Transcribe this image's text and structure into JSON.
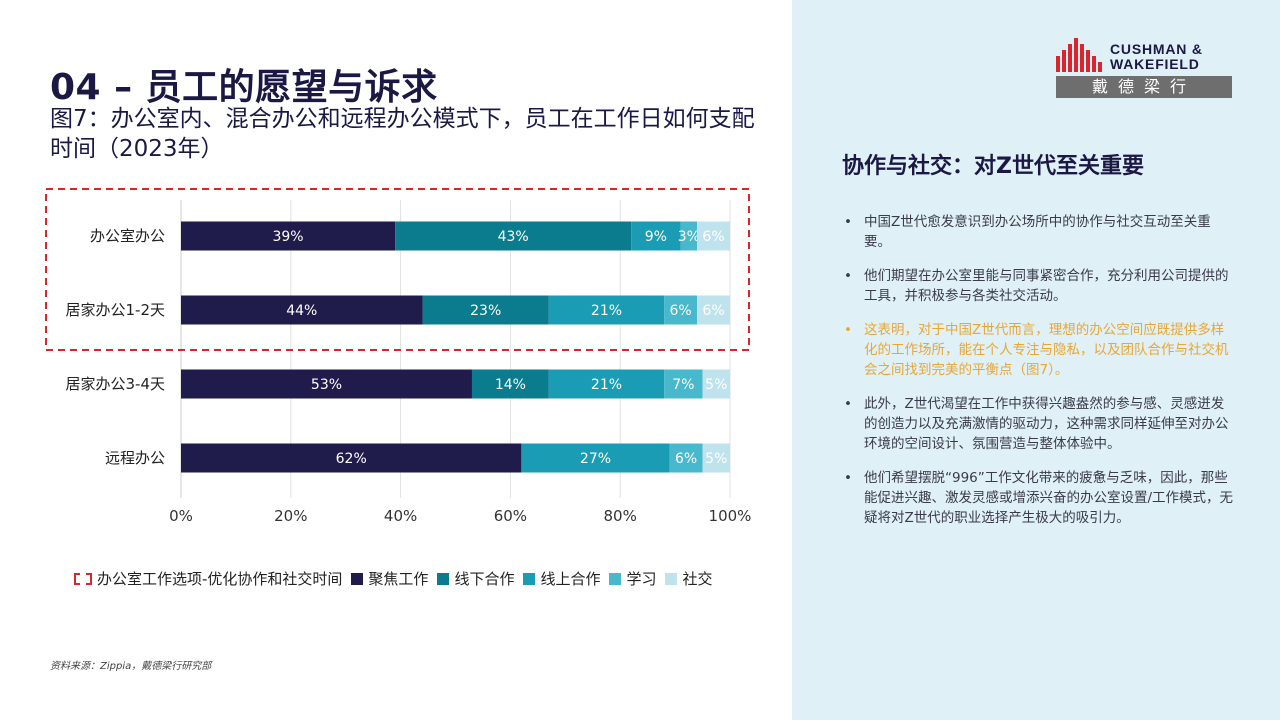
{
  "header": {
    "title": "04 – 员工的愿望与诉求",
    "figure_title": "图7：办公室内、混合办公和远程办公模式下，员工在工作日如何支配时间（2023年）"
  },
  "logo": {
    "line1": "CUSHMAN &",
    "line2": "WAKEFIELD",
    "cn": "戴德梁行"
  },
  "sidebar": {
    "heading": "协作与社交：对Z世代至关重要",
    "bullets": [
      {
        "text": "中国Z世代愈发意识到办公场所中的协作与社交互动至关重要。",
        "highlight": false
      },
      {
        "text": "他们期望在办公室里能与同事紧密合作，充分利用公司提供的工具，并积极参与各类社交活动。",
        "highlight": false
      },
      {
        "text": "这表明，对于中国Z世代而言，理想的办公空间应既提供多样化的工作场所，能在个人专注与隐私，以及团队合作与社交机会之间找到完美的平衡点（图7）。",
        "highlight": true
      },
      {
        "text": "此外，Z世代渴望在工作中获得兴趣盎然的参与感、灵感迸发的创造力以及充满激情的驱动力，这种需求同样延伸至对办公环境的空间设计、氛围营造与整体体验中。",
        "highlight": false
      },
      {
        "text": "他们希望摆脱“996”工作文化带来的疲惫与乏味，因此，那些能促进兴趣、激发灵感或增添兴奋的办公室设置/工作模式，无疑将对Z世代的职业选择产生极大的吸引力。",
        "highlight": false
      }
    ]
  },
  "source": "资料来源：Zippia，戴德梁行研究部",
  "colors": {
    "focus": "#1f1b4a",
    "offline": "#0b7b8e",
    "online": "#1a9cb4",
    "learning": "#48b8cc",
    "social": "#bfe3ec",
    "highlight_box": "#d9262e",
    "panel": "#dff0f6",
    "accent": "#e8a735"
  },
  "chart_data": {
    "type": "bar",
    "orientation": "horizontal",
    "stacked": true,
    "categories": [
      "办公室办公",
      "居家办公1-2天",
      "居家办公3-4天",
      "远程办公"
    ],
    "series": [
      {
        "name": "聚焦工作",
        "values": [
          39,
          44,
          53,
          62
        ]
      },
      {
        "name": "线下合作",
        "values": [
          43,
          23,
          14,
          0
        ]
      },
      {
        "name": "线上合作",
        "values": [
          9,
          21,
          21,
          27
        ]
      },
      {
        "name": "学习",
        "values": [
          3,
          6,
          7,
          6
        ]
      },
      {
        "name": "社交",
        "values": [
          6,
          6,
          5,
          5
        ]
      }
    ],
    "xlim": [
      0,
      100
    ],
    "xticks": [
      "0%",
      "20%",
      "40%",
      "60%",
      "80%",
      "100%"
    ],
    "grid": true,
    "highlight_categories": [
      0,
      1
    ],
    "legend": {
      "placement": "bottom",
      "highlight_label": "办公室工作选项-优化协作和社交时间"
    }
  }
}
